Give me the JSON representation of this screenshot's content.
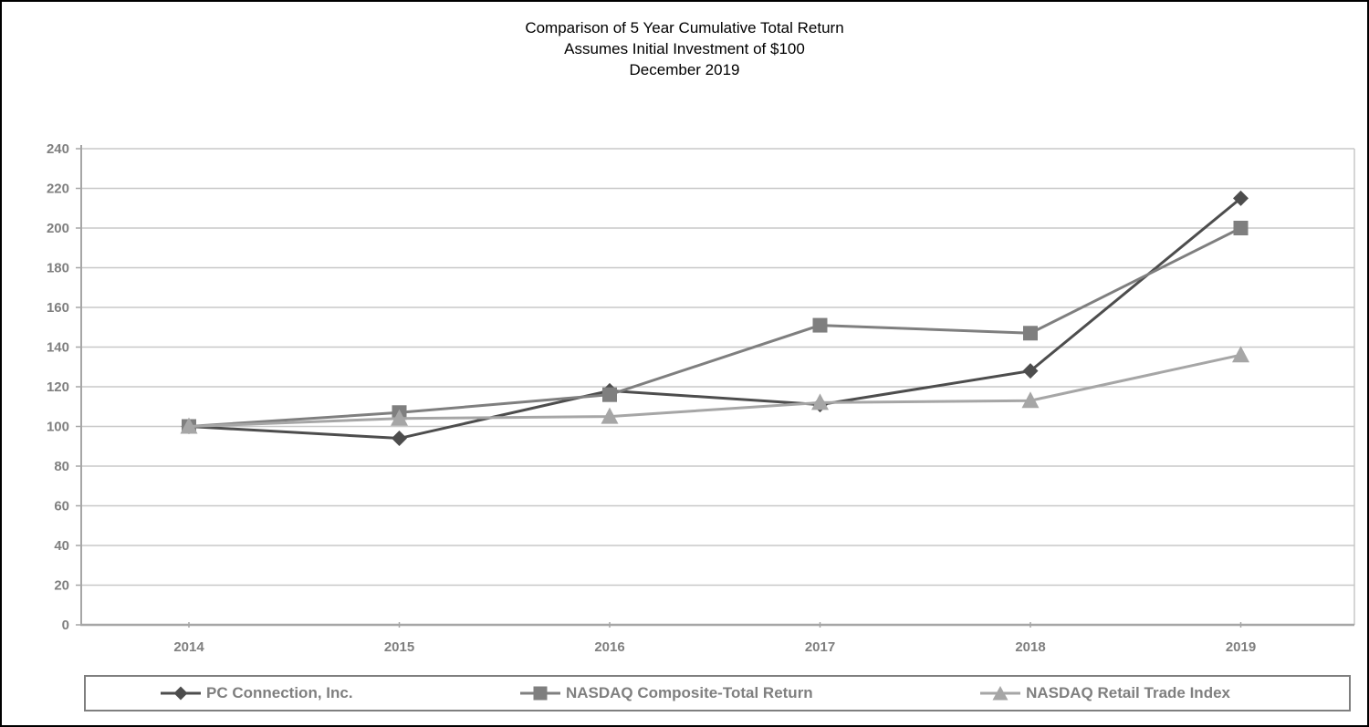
{
  "chart_data": {
    "type": "line",
    "title": "Comparison of 5 Year Cumulative Total Return",
    "subtitle": "Assumes Initial Investment of $100",
    "date_label": "December 2019",
    "categories": [
      "2014",
      "2015",
      "2016",
      "2017",
      "2018",
      "2019"
    ],
    "series": [
      {
        "name": "PC Connection, Inc.",
        "marker": "diamond",
        "color": "#4d4d4d",
        "values": [
          100,
          94,
          118,
          111,
          128,
          215
        ]
      },
      {
        "name": "NASDAQ Composite-Total Return",
        "marker": "square",
        "color": "#7f7f7f",
        "values": [
          100,
          107,
          116,
          151,
          147,
          200
        ]
      },
      {
        "name": "NASDAQ Retail Trade Index",
        "marker": "triangle",
        "color": "#a6a6a6",
        "values": [
          100,
          104,
          105,
          112,
          113,
          136
        ]
      }
    ],
    "xlabel": "",
    "ylabel": "",
    "ylim": [
      0,
      240
    ],
    "ytick_step": 20,
    "yticks": [
      0,
      20,
      40,
      60,
      80,
      100,
      120,
      140,
      160,
      180,
      200,
      220,
      240
    ],
    "grid": true,
    "legend_position": "bottom",
    "colors": {
      "gridline": "#c8c8c8",
      "axis": "#a6a6a6",
      "tick_label": "#7f7f7f",
      "legend_text": "#7f7f7f",
      "title_text": "#000000",
      "background": "#ffffff"
    }
  }
}
